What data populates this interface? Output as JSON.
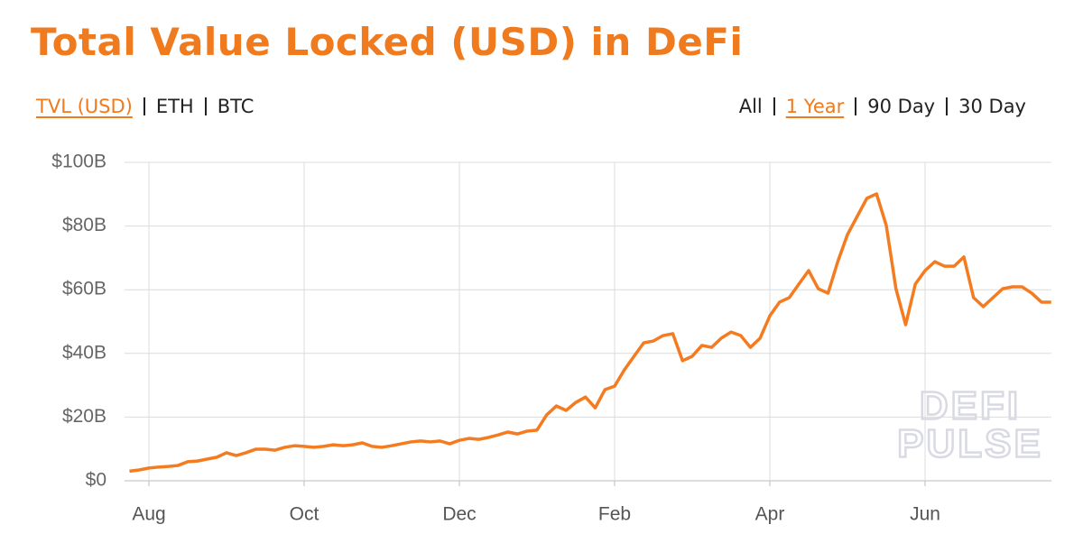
{
  "chart_data": {
    "type": "line",
    "title": "Total Value Locked (USD) in DeFi",
    "unit_tabs": [
      "TVL (USD)",
      "ETH",
      "BTC"
    ],
    "active_unit_tab": 0,
    "range_tabs": [
      "All",
      "1 Year",
      "90 Day",
      "30 Day"
    ],
    "active_range_tab": 1,
    "watermark": [
      "DEFI",
      "PULSE"
    ],
    "color": "#f47b20",
    "grid": true,
    "categories": [
      null,
      null,
      "Aug",
      null,
      null,
      null,
      null,
      null,
      null,
      null,
      null,
      null,
      null,
      null,
      null,
      null,
      null,
      null,
      "Oct",
      null,
      null,
      null,
      null,
      null,
      null,
      null,
      null,
      null,
      null,
      null,
      null,
      null,
      null,
      null,
      "Dec",
      null,
      null,
      null,
      null,
      null,
      null,
      null,
      null,
      null,
      null,
      null,
      null,
      null,
      null,
      null,
      "Feb",
      null,
      null,
      null,
      null,
      null,
      null,
      null,
      null,
      null,
      null,
      null,
      null,
      null,
      null,
      null,
      "Apr",
      null,
      null,
      null,
      null,
      null,
      null,
      null,
      null,
      null,
      null,
      null,
      null,
      null,
      null,
      null,
      "Jun",
      null,
      null,
      null,
      null,
      null,
      null,
      null,
      null,
      null,
      null,
      null,
      null,
      null
    ],
    "values": [
      3,
      3.4,
      4,
      4.3,
      4.5,
      4.8,
      6,
      6.2,
      6.8,
      7.4,
      8.8,
      7.9,
      8.8,
      9.9,
      9.9,
      9.6,
      10.5,
      11,
      10.8,
      10.5,
      10.8,
      11.3,
      11,
      11.3,
      11.9,
      10.8,
      10.5,
      11,
      11.6,
      12.2,
      12.5,
      12.2,
      12.5,
      11.6,
      12.7,
      13.3,
      13,
      13.6,
      14.4,
      15.3,
      14.7,
      15.6,
      15.9,
      20.7,
      23.5,
      22.1,
      24.6,
      26.3,
      22.9,
      28.6,
      29.7,
      34.8,
      39.1,
      43.3,
      43.9,
      45.6,
      46.2,
      37.7,
      39.1,
      42.5,
      41.9,
      44.8,
      46.7,
      45.6,
      41.9,
      44.8,
      51.8,
      56.1,
      57.5,
      61.8,
      66,
      60.3,
      58.9,
      68.8,
      77.3,
      83,
      88.7,
      90.1,
      80.2,
      60.3,
      49,
      61.8,
      66,
      68.8,
      67.4,
      67.4,
      70.3,
      57.5,
      54.7,
      57.5,
      60.3,
      60.9,
      60.9,
      58.9,
      56.1,
      56.1
    ],
    "ylim": [
      0,
      100
    ],
    "yticks": [
      {
        "value": 0,
        "label": "$0"
      },
      {
        "value": 20,
        "label": "$20B"
      },
      {
        "value": 40,
        "label": "$40B"
      },
      {
        "value": 60,
        "label": "$60B"
      },
      {
        "value": 80,
        "label": "$80B"
      },
      {
        "value": 100,
        "label": "$100B"
      }
    ]
  }
}
